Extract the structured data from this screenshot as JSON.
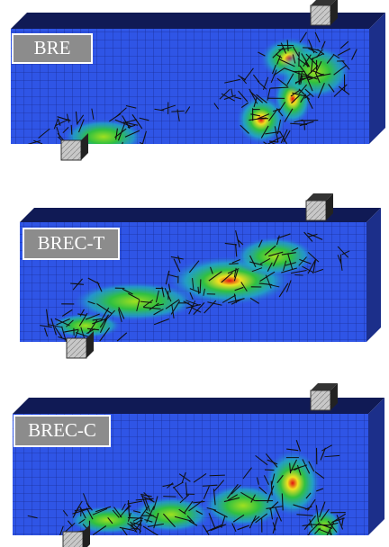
{
  "panels": [
    {
      "label": "BRE"
    },
    {
      "label": "BREC-T"
    },
    {
      "label": "BREC-C"
    }
  ]
}
